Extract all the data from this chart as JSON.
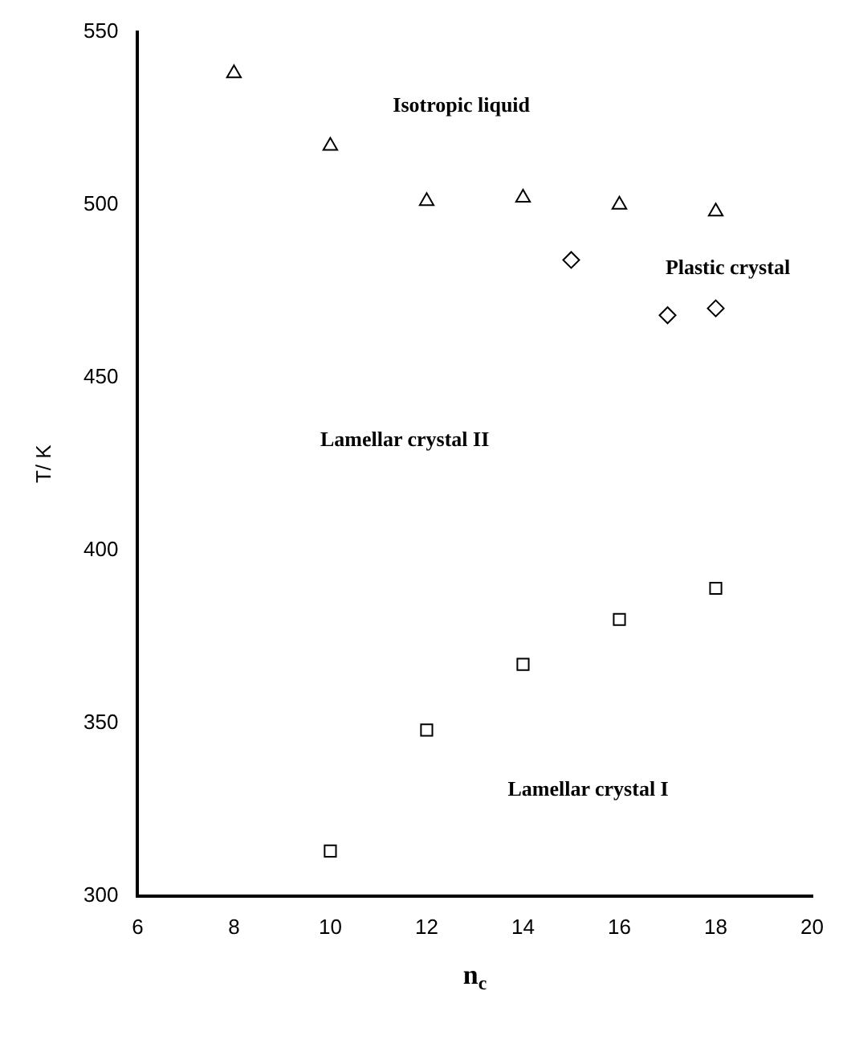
{
  "chart_data": {
    "type": "scatter",
    "xlabel": "n$_{c}$",
    "ylabel": "T/ K",
    "xlim": [
      6,
      20
    ],
    "xticks": [
      6,
      8,
      10,
      12,
      14,
      16,
      18,
      20
    ],
    "ylim": [
      300,
      550
    ],
    "yticks": [
      300,
      350,
      400,
      450,
      500,
      550
    ],
    "grid": false,
    "legend": false,
    "series": [
      {
        "color": "#000000",
        "marker": "triangle",
        "x": [
          8,
          10,
          12,
          14,
          16,
          18
        ],
        "values": [
          538,
          517,
          501,
          502,
          500,
          498
        ]
      },
      {
        "color": "#000000",
        "marker": "diamond",
        "x": [
          15,
          17,
          18
        ],
        "values": [
          484,
          468,
          470
        ]
      },
      {
        "color": "#000000",
        "marker": "square",
        "x": [
          10,
          12,
          14,
          16,
          18
        ],
        "values": [
          313,
          348,
          367,
          380,
          389
        ]
      }
    ],
    "annotations": [
      "Isotropic liquid",
      "Plastic crystal",
      "Lamellar crystal II",
      "Lamellar crystal I"
    ]
  }
}
